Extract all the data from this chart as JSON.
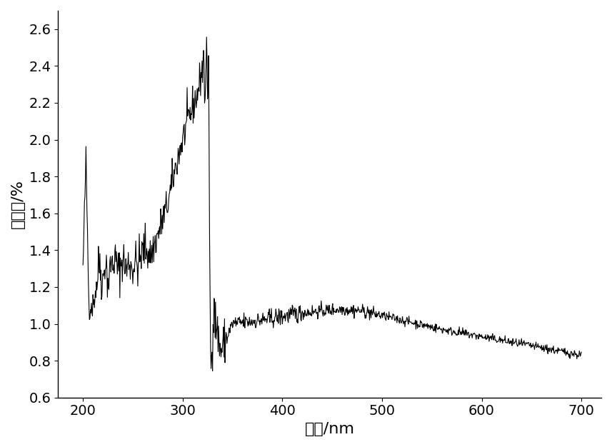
{
  "xlabel": "波长/nm",
  "ylabel": "反射率/%",
  "xlim": [
    175,
    720
  ],
  "ylim": [
    0.6,
    2.7
  ],
  "xticks": [
    200,
    300,
    400,
    500,
    600,
    700
  ],
  "yticks": [
    0.6,
    0.8,
    1.0,
    1.2,
    1.4,
    1.6,
    1.8,
    2.0,
    2.2,
    2.4,
    2.6
  ],
  "line_color": "#000000",
  "line_width": 0.8,
  "background_color": "#ffffff",
  "xlabel_fontsize": 16,
  "ylabel_fontsize": 16,
  "tick_fontsize": 14
}
